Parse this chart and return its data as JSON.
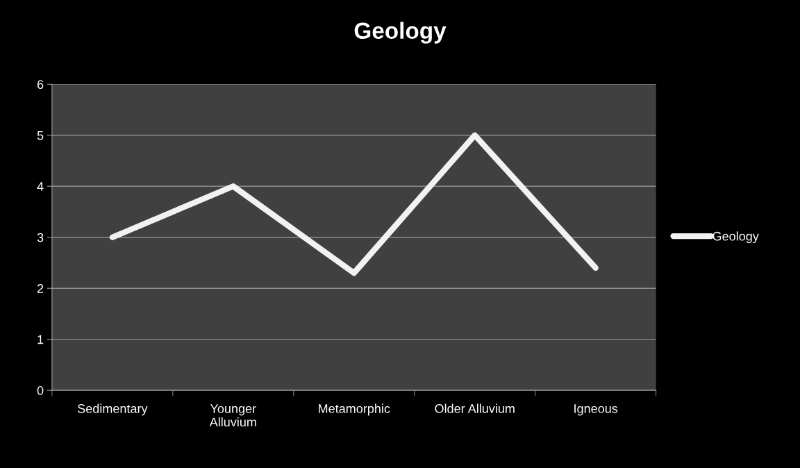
{
  "chart_data": {
    "type": "line",
    "title": "Geology",
    "categories": [
      "Sedimentary",
      "Younger\nAlluvium",
      "Metamorphic",
      "Older Alluvium",
      "Igneous"
    ],
    "series": [
      {
        "name": "Geology",
        "color": "#f2f2f2",
        "values": [
          3,
          4,
          2.3,
          5,
          2.4
        ]
      }
    ],
    "ylim": [
      0,
      6
    ],
    "yticks": [
      0,
      1,
      2,
      3,
      4,
      5,
      6
    ],
    "grid": "y",
    "legend": "right",
    "marker": "none",
    "line_style": "solid"
  }
}
